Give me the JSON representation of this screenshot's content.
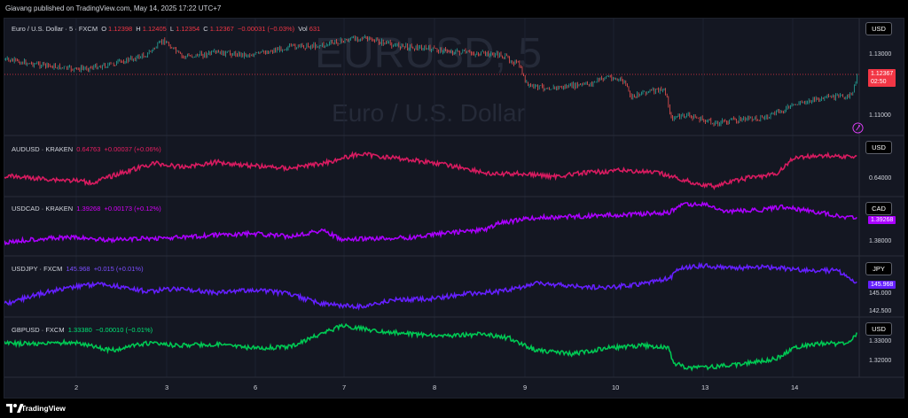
{
  "header": {
    "published": "Giavang published on TradingView.com, May 14, 2025 17:22 UTC+7"
  },
  "watermark": {
    "symbol": "EURUSD, 5",
    "description": "Euro / U.S. Dollar"
  },
  "panes": [
    {
      "legend_title": "Euro / U.S. Dollar · 5 · FXCM",
      "ohlc": [
        {
          "label": "O",
          "value": "1.12398"
        },
        {
          "label": "H",
          "value": "1.12405"
        },
        {
          "label": "L",
          "value": "1.12354"
        },
        {
          "label": "C",
          "value": "1.12367"
        }
      ],
      "change": "−0.00031 (−0.03%)",
      "volume_label": "Vol",
      "volume": "631",
      "unit": "USD",
      "ticks": [
        "1.13000",
        "1.11000"
      ],
      "last_price": "1.12367",
      "countdown": "02:50",
      "color": "#26a69a",
      "down_color": "#ef5350"
    },
    {
      "legend_title": "AUDUSD · KRAKEN",
      "last": "0.64763",
      "change": "+0.00037 (+0.06%)",
      "unit": "USD",
      "ticks": [
        "0.64000"
      ],
      "color": "#d81b60"
    },
    {
      "legend_title": "USDCAD · KRAKEN",
      "last": "1.39268",
      "change": "+0.00173 (+0.12%)",
      "unit": "CAD",
      "ticks": [
        "1.38000"
      ],
      "tag": "1.39268",
      "color": "#aa00ff"
    },
    {
      "legend_title": "USDJPY · FXCM",
      "last": "145.968",
      "change": "+0.015 (+0.01%)",
      "unit": "JPY",
      "ticks": [
        "145.000",
        "142.500"
      ],
      "tag": "145.968",
      "color": "#651fff"
    },
    {
      "legend_title": "GBPUSD · FXCM",
      "last": "1.33380",
      "change": "−0.00010 (−0.01%)",
      "unit": "USD",
      "ticks": [
        "1.33000",
        "1.32000"
      ],
      "color": "#00c853"
    }
  ],
  "time_axis": [
    "2",
    "3",
    "6",
    "7",
    "8",
    "9",
    "10",
    "13",
    "14"
  ],
  "footer": {
    "brand": "TradingView"
  },
  "icons": [
    "settings-icon",
    "tradingview-logo-icon"
  ]
}
